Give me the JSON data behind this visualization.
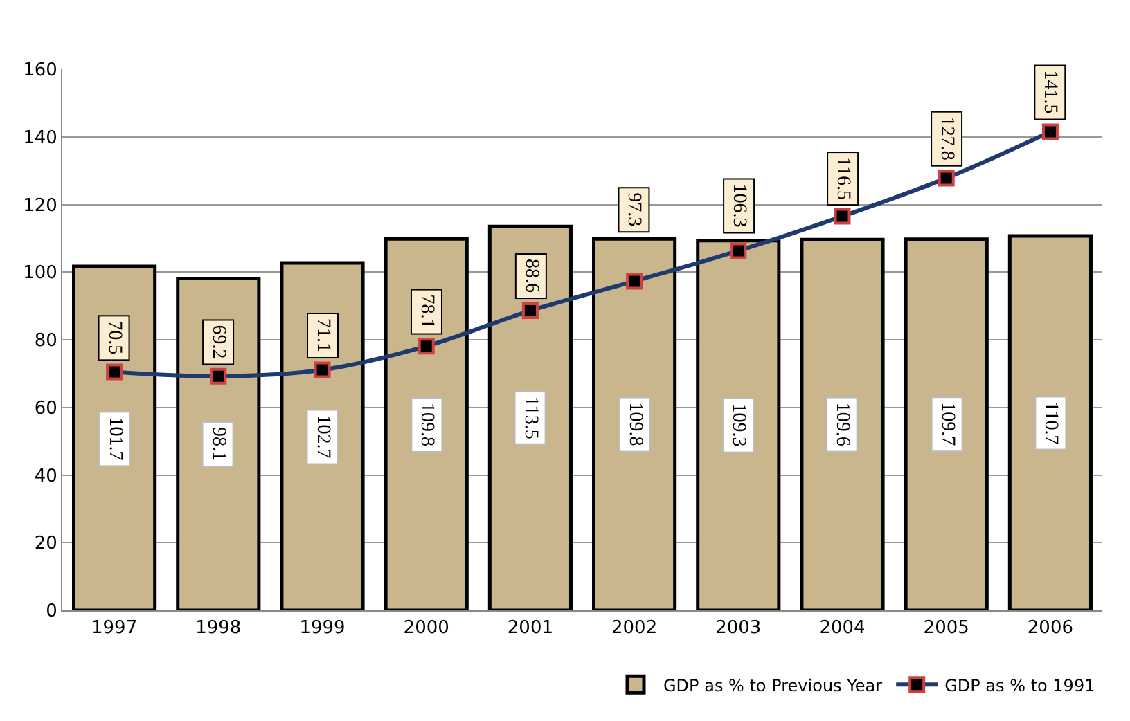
{
  "chart_data": {
    "type": "bar",
    "categories": [
      "1997",
      "1998",
      "1999",
      "2000",
      "2001",
      "2002",
      "2003",
      "2004",
      "2005",
      "2006"
    ],
    "series": [
      {
        "name": "GDP as % to Previous Year",
        "color": "#c9b68c",
        "values": [
          101.7,
          98.1,
          102.7,
          109.8,
          113.5,
          109.8,
          109.3,
          109.6,
          109.7,
          110.7
        ]
      },
      {
        "name": "GDP as % to 1991",
        "type": "line",
        "color": "#1f3a6e",
        "marker": "square",
        "values": [
          70.5,
          69.2,
          71.1,
          78.1,
          88.6,
          97.3,
          106.3,
          116.5,
          127.8,
          141.5
        ]
      }
    ],
    "ylim": [
      0,
      160
    ],
    "yticks": [
      0,
      20,
      40,
      60,
      80,
      100,
      120,
      140,
      160
    ],
    "grid": "y",
    "legend": "bottom right",
    "data_labels": true
  }
}
